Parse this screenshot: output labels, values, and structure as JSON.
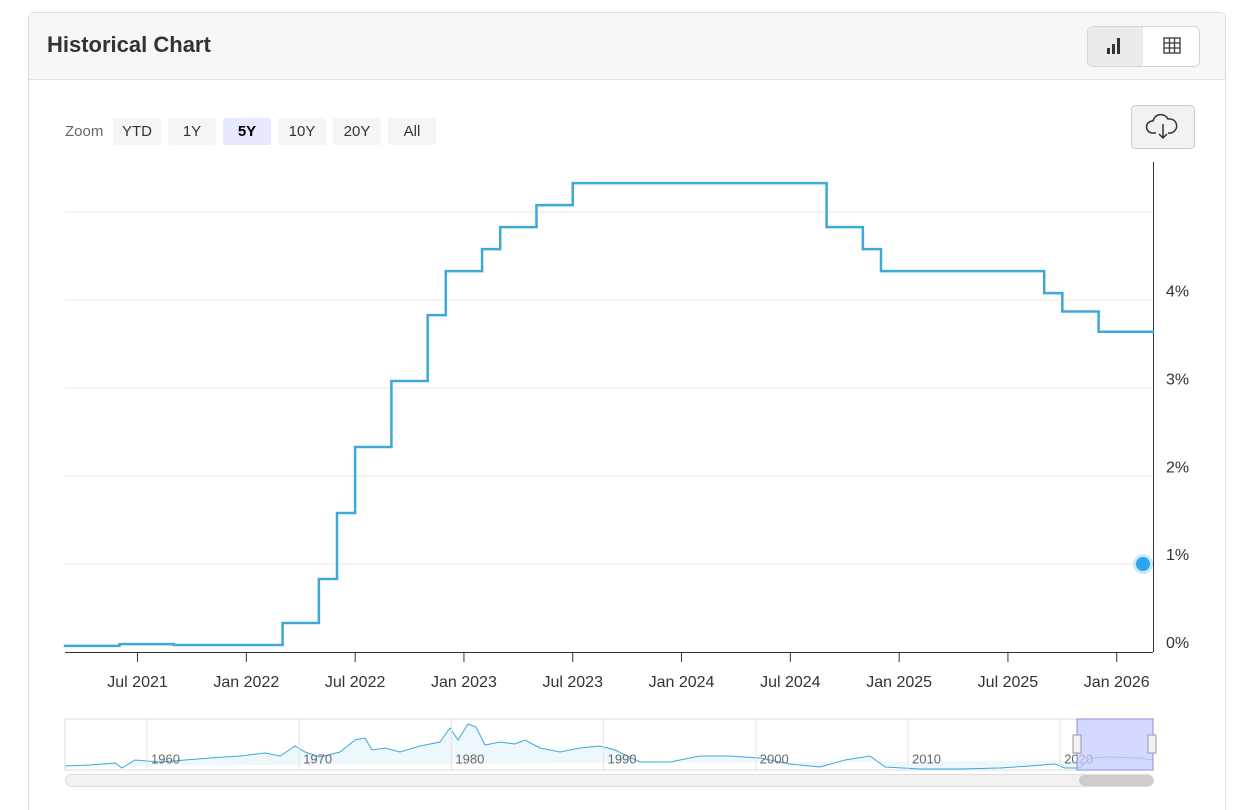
{
  "ui": {
    "title": "Historical Chart",
    "zoom_label": "Zoom",
    "zoom_options": [
      "YTD",
      "1Y",
      "5Y",
      "10Y",
      "20Y",
      "All"
    ],
    "active_zoom": 2,
    "navigator_labels": [
      "1960",
      "1970",
      "1980",
      "1990",
      "2000",
      "2010",
      "2020"
    ]
  },
  "chart_data": {
    "type": "step",
    "x": [
      "2021-03",
      "2021-06",
      "2021-09",
      "2022-03",
      "2022-05",
      "2022-06",
      "2022-07",
      "2022-09",
      "2022-11",
      "2022-12",
      "2023-02",
      "2023-03",
      "2023-05",
      "2023-07",
      "2024-09",
      "2024-11",
      "2024-12",
      "2025-09",
      "2025-10",
      "2025-12"
    ],
    "values": [
      0.07,
      0.09,
      0.08,
      0.33,
      0.83,
      1.58,
      2.33,
      3.08,
      3.83,
      4.33,
      4.58,
      4.83,
      5.08,
      5.33,
      4.83,
      4.58,
      4.33,
      4.08,
      3.87,
      3.64
    ],
    "color": "#3ca9d8",
    "highlight_point": {
      "x": "2026-03",
      "value": 1,
      "color": "#2fa3ee"
    },
    "xlim": [
      "2021-03",
      "2026-03"
    ],
    "xticks": [
      {
        "value": "2021-07",
        "label": "Jul 2021"
      },
      {
        "value": "2022-01",
        "label": "Jan 2022"
      },
      {
        "value": "2022-07",
        "label": "Jul 2022"
      },
      {
        "value": "2023-01",
        "label": "Jan 2023"
      },
      {
        "value": "2023-07",
        "label": "Jul 2023"
      },
      {
        "value": "2024-01",
        "label": "Jan 2024"
      },
      {
        "value": "2024-07",
        "label": "Jul 2024"
      },
      {
        "value": "2025-01",
        "label": "Jan 2025"
      },
      {
        "value": "2025-07",
        "label": "Jul 2025"
      },
      {
        "value": "2026-01",
        "label": "Jan 2026"
      }
    ],
    "ylim": [
      0,
      5.57
    ],
    "yticks": [
      {
        "value": 0,
        "label": "0%"
      },
      {
        "value": 1,
        "label": "1%"
      },
      {
        "value": 2,
        "label": "2%"
      },
      {
        "value": 3,
        "label": "3%"
      },
      {
        "value": 4,
        "label": "4%"
      },
      {
        "value": 5,
        "label": null
      }
    ],
    "grid": true
  }
}
